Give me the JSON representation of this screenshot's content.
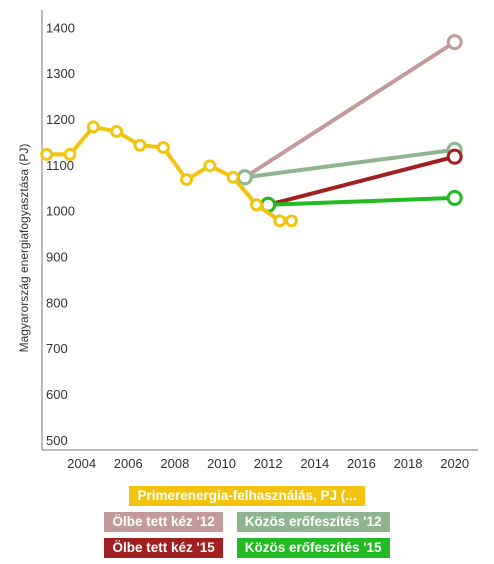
{
  "chart_data": {
    "type": "line",
    "title": "",
    "xlabel": "",
    "ylabel": "Magyarország energiafogyasztása (PJ)",
    "xlim": [
      2002.3,
      2021
    ],
    "ylim": [
      480,
      1440
    ],
    "x_ticks": [
      2004,
      2006,
      2008,
      2010,
      2012,
      2014,
      2016,
      2018,
      2020
    ],
    "y_ticks": [
      500,
      600,
      700,
      800,
      900,
      1000,
      1100,
      1200,
      1300,
      1400
    ],
    "grid": false,
    "legend_position": "bottom",
    "series": [
      {
        "name": "Primerenergia-felhasználás, PJ (...",
        "color": "#f2c40f",
        "x": [
          2002.5,
          2003.5,
          2004.5,
          2005.5,
          2006.5,
          2007.5,
          2008.5,
          2009.5,
          2010.5,
          2011.5,
          2012.5,
          2013
        ],
        "y": [
          1125,
          1125,
          1185,
          1175,
          1145,
          1140,
          1070,
          1100,
          1075,
          1015,
          980,
          980
        ],
        "markers": true
      },
      {
        "name": "Ölbe tett kéz '12",
        "color": "#c29a9a",
        "x": [
          2011,
          2020
        ],
        "y": [
          1075,
          1370
        ],
        "markers": true
      },
      {
        "name": "Közös erőfeszítés '12",
        "color": "#8fb58f",
        "x": [
          2011,
          2020
        ],
        "y": [
          1075,
          1135
        ],
        "markers": true
      },
      {
        "name": "Ölbe tett kéz '15",
        "color": "#a01f1f",
        "x": [
          2012,
          2020
        ],
        "y": [
          1015,
          1120
        ],
        "markers": true
      },
      {
        "name": "Közös erőfeszítés '15",
        "color": "#22bb22",
        "x": [
          2012,
          2020
        ],
        "y": [
          1015,
          1030
        ],
        "markers": true
      }
    ]
  },
  "legend": {
    "rows": [
      [
        0
      ],
      [
        1,
        2
      ],
      [
        3,
        4
      ]
    ]
  }
}
